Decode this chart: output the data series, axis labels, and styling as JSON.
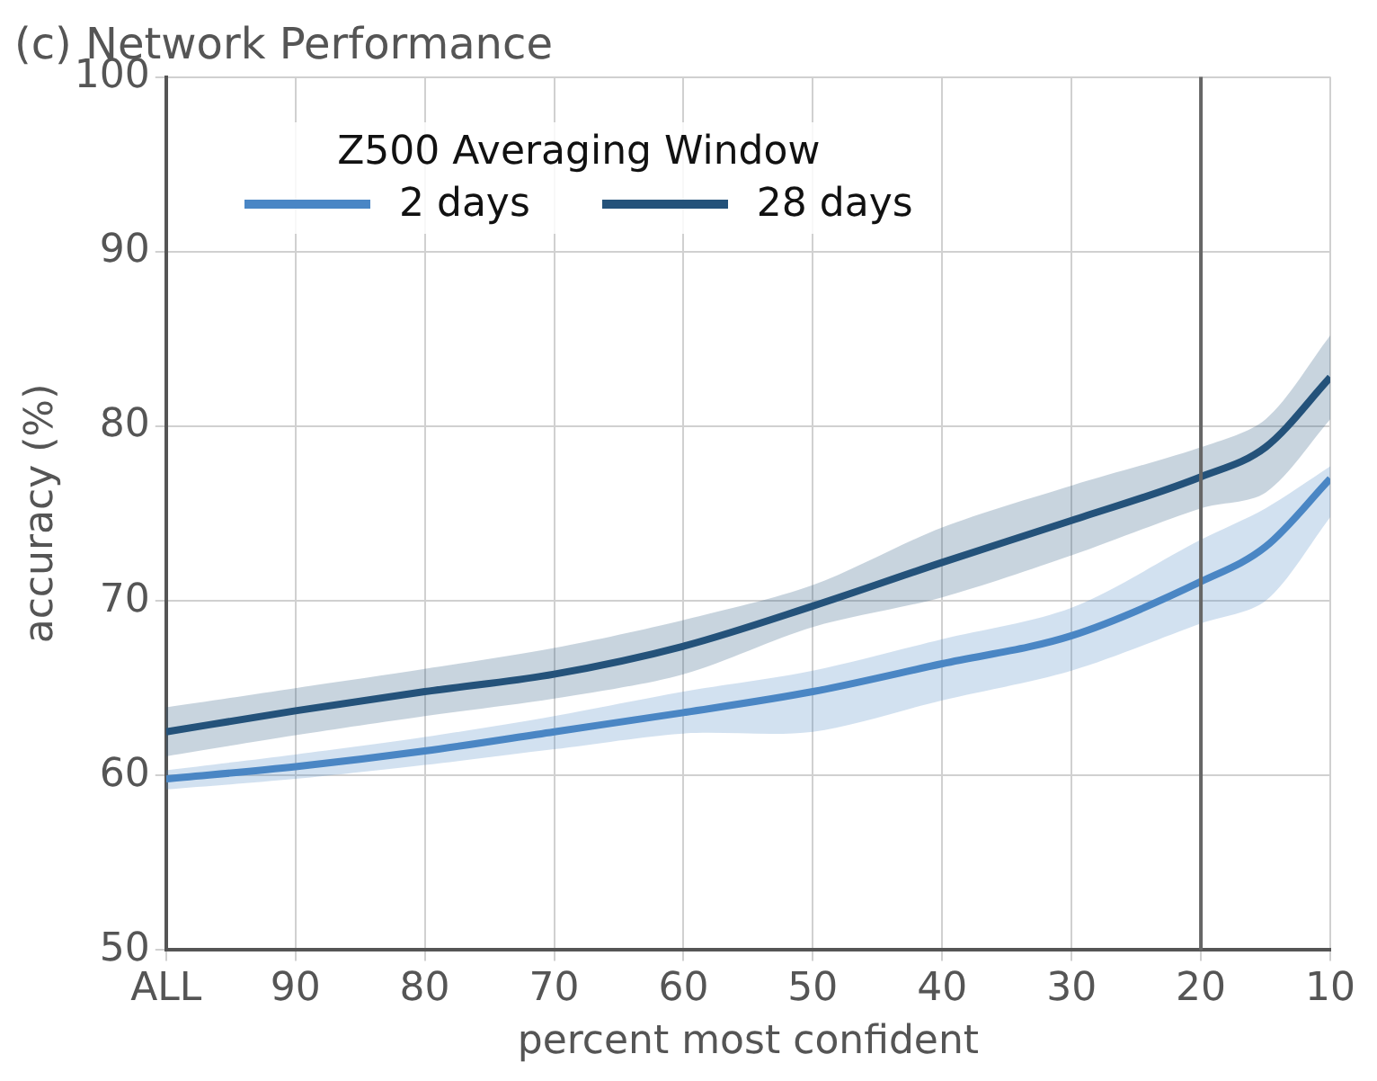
{
  "chart_data": {
    "type": "line",
    "title": "(c) Network Performance",
    "xlabel": "percent most confident",
    "ylabel": "accuracy (%)",
    "legend_title": "Z500 Averaging Window",
    "x": [
      100,
      90,
      80,
      70,
      60,
      50,
      40,
      30,
      20,
      15,
      10
    ],
    "series": [
      {
        "name": "2 days",
        "color": "#4a86c5",
        "values": [
          59.8,
          60.5,
          61.4,
          62.5,
          63.6,
          64.8,
          66.4,
          68.0,
          71.1,
          73.1,
          77.0
        ],
        "lower": [
          59.2,
          59.8,
          60.6,
          61.5,
          62.4,
          62.5,
          64.3,
          66.0,
          68.7,
          70.0,
          74.8
        ],
        "upper": [
          60.3,
          61.2,
          62.2,
          63.4,
          64.8,
          66.0,
          67.8,
          69.6,
          73.5,
          75.3,
          77.7
        ]
      },
      {
        "name": "28 days",
        "color": "#24527a",
        "values": [
          62.5,
          63.7,
          64.8,
          65.8,
          67.4,
          69.7,
          72.2,
          74.6,
          77.1,
          78.8,
          82.8
        ],
        "lower": [
          61.1,
          62.3,
          63.4,
          64.4,
          65.8,
          68.5,
          70.2,
          72.6,
          75.3,
          76.2,
          80.4
        ],
        "upper": [
          63.9,
          65.0,
          66.1,
          67.3,
          68.9,
          70.9,
          74.2,
          76.6,
          78.8,
          80.4,
          85.2
        ]
      }
    ],
    "xlim": [
      100,
      10
    ],
    "xticks": [
      {
        "value": 100,
        "label": "ALL"
      },
      90,
      80,
      70,
      60,
      50,
      40,
      30,
      20,
      10
    ],
    "ylim": [
      50,
      100
    ],
    "yticks": [
      50,
      60,
      70,
      80,
      90,
      100
    ],
    "ref_lines": [
      {
        "axis": "x",
        "value": 20,
        "color": "#666666"
      }
    ],
    "grid": true,
    "legend": "top left",
    "line_style": "solid",
    "marker": "none"
  }
}
